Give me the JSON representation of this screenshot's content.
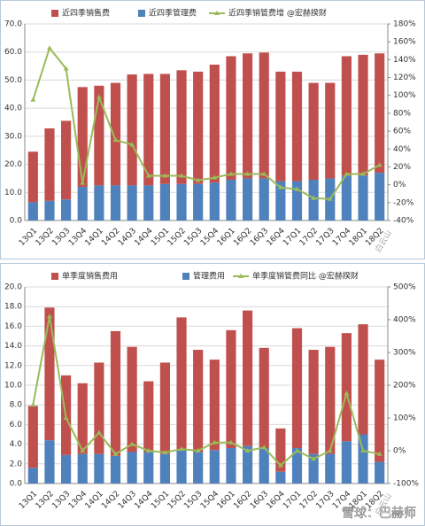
{
  "chart_data": [
    {
      "type": "bar",
      "stacked": true,
      "grid": true,
      "categories": [
        "13Q1",
        "13Q2",
        "13Q3",
        "13Q4",
        "14Q1",
        "14Q2",
        "14Q3",
        "14Q4",
        "15Q1",
        "15Q2",
        "15Q3",
        "15Q4",
        "16Q1",
        "16Q2",
        "16Q3",
        "16Q4",
        "17Q1",
        "17Q2",
        "17Q3",
        "17Q4",
        "18Q1",
        "18Q2"
      ],
      "series": [
        {
          "name": "近四季销售费",
          "color": "#c0504d",
          "values": [
            18,
            25.8,
            28,
            35.5,
            35.5,
            36.5,
            39.5,
            39.7,
            39.2,
            40.5,
            40,
            42,
            44,
            44.5,
            44.8,
            39,
            39,
            34.5,
            34,
            42.5,
            43,
            42.5
          ]
        },
        {
          "name": "近四季管理费",
          "color": "#4f81bd",
          "values": [
            6.5,
            7,
            7.5,
            12,
            12.5,
            12.5,
            12.5,
            12.5,
            13,
            13,
            13,
            13.5,
            14.5,
            15,
            15,
            14,
            14,
            14.5,
            15,
            16,
            16,
            17
          ]
        },
        {
          "name": "近四季销管费增 @宏赫揆财",
          "color": "#9bbb59",
          "type": "line",
          "axis": "y2",
          "values": [
            95,
            153,
            130,
            2,
            98,
            50,
            45,
            10,
            10,
            10,
            5,
            8,
            12,
            12,
            12,
            -3,
            -5,
            -15,
            -16,
            12,
            12,
            22
          ]
        }
      ],
      "ylim": [
        0,
        70
      ],
      "yticks": [
        {
          "value": 0,
          "label": "0.0"
        },
        {
          "value": 10,
          "label": "10.0"
        },
        {
          "value": 20,
          "label": "20.0"
        },
        {
          "value": 30,
          "label": "30.0"
        },
        {
          "value": 40,
          "label": "40.0"
        },
        {
          "value": 50,
          "label": "50.0"
        },
        {
          "value": 60,
          "label": "60.0"
        },
        {
          "value": 70,
          "label": "70.0"
        }
      ],
      "y2lim": [
        -40,
        180
      ],
      "y2ticks": [
        {
          "value": -40,
          "label": "-40%"
        },
        {
          "value": -20,
          "label": "-20%"
        },
        {
          "value": 0,
          "label": "0%"
        },
        {
          "value": 20,
          "label": "20%"
        },
        {
          "value": 40,
          "label": "40%"
        },
        {
          "value": 60,
          "label": "60%"
        },
        {
          "value": 80,
          "label": "80%"
        },
        {
          "value": 100,
          "label": "100%"
        },
        {
          "value": 120,
          "label": "120%"
        },
        {
          "value": 140,
          "label": "140%"
        },
        {
          "value": 160,
          "label": "160%"
        },
        {
          "value": 180,
          "label": "180%"
        }
      ],
      "annotation": "白云山"
    },
    {
      "type": "bar",
      "stacked": true,
      "grid": true,
      "categories": [
        "13Q1",
        "13Q2",
        "13Q3",
        "13Q4",
        "14Q1",
        "14Q2",
        "14Q3",
        "14Q4",
        "15Q1",
        "15Q2",
        "15Q3",
        "15Q4",
        "16Q1",
        "16Q2",
        "16Q3",
        "16Q4",
        "17Q1",
        "17Q2",
        "17Q3",
        "17Q4",
        "18Q1",
        "18Q2"
      ],
      "series": [
        {
          "name": "单季度销售费用",
          "color": "#c0504d",
          "values": [
            6.3,
            13.5,
            8.1,
            7.2,
            9.3,
            12.7,
            10.7,
            7.2,
            9.3,
            13.5,
            10.4,
            9.2,
            12,
            13.8,
            10.2,
            4.4,
            12.2,
            10.6,
            10.9,
            11,
            11.2,
            10.4
          ]
        },
        {
          "name": "管理费用",
          "color": "#4f81bd",
          "values": [
            1.6,
            4.4,
            2.9,
            3,
            3,
            2.8,
            3.2,
            3.2,
            3,
            3.4,
            3.2,
            3.4,
            3.6,
            3.8,
            3.6,
            1.2,
            3.6,
            3,
            3,
            4.3,
            5,
            2.2
          ]
        },
        {
          "name": "单季度销管费同比 @宏赫揆财",
          "color": "#9bbb59",
          "type": "line",
          "axis": "y2",
          "values": [
            140,
            410,
            100,
            0,
            55,
            -10,
            20,
            0,
            -5,
            5,
            0,
            25,
            25,
            0,
            10,
            -45,
            0,
            -25,
            0,
            175,
            0,
            -10
          ]
        }
      ],
      "ylim": [
        0,
        20
      ],
      "yticks": [
        {
          "value": 0,
          "label": "0.0"
        },
        {
          "value": 2,
          "label": "2.0"
        },
        {
          "value": 4,
          "label": "4.0"
        },
        {
          "value": 6,
          "label": "6.0"
        },
        {
          "value": 8,
          "label": "8.0"
        },
        {
          "value": 10,
          "label": "10.0"
        },
        {
          "value": 12,
          "label": "12.0"
        },
        {
          "value": 14,
          "label": "14.0"
        },
        {
          "value": 16,
          "label": "16.0"
        },
        {
          "value": 18,
          "label": "18.0"
        },
        {
          "value": 20,
          "label": "20.0"
        }
      ],
      "y2lim": [
        -100,
        500
      ],
      "y2ticks": [
        {
          "value": -100,
          "label": "-100%"
        },
        {
          "value": 0,
          "label": "0%"
        },
        {
          "value": 100,
          "label": "100%"
        },
        {
          "value": 200,
          "label": "200%"
        },
        {
          "value": 300,
          "label": "300%"
        },
        {
          "value": 400,
          "label": "400%"
        },
        {
          "value": 500,
          "label": "500%"
        }
      ],
      "annotation": "白云山"
    }
  ],
  "watermark": "雪球：巴赫师"
}
